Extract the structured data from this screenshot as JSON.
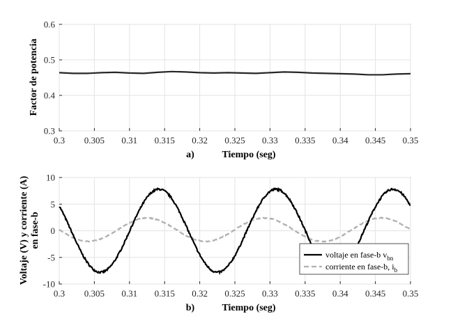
{
  "chart_data": [
    {
      "type": "line",
      "panel_label": "a)",
      "xlabel": "Tiempo (seg)",
      "ylabel": "Factor de potencia",
      "xlim": [
        0.3,
        0.35
      ],
      "ylim": [
        0.3,
        0.6
      ],
      "xticks": [
        "0.3",
        "0.305",
        "0.31",
        "0.315",
        "0.32",
        "0.325",
        "0.33",
        "0.335",
        "0.34",
        "0.345",
        "0.35"
      ],
      "yticks": [
        "0.3",
        "0.4",
        "0.5",
        "0.6"
      ],
      "grid": true,
      "series": [
        {
          "color": "#262626",
          "x": [
            0.3,
            0.302,
            0.304,
            0.306,
            0.308,
            0.31,
            0.312,
            0.314,
            0.316,
            0.318,
            0.32,
            0.322,
            0.324,
            0.326,
            0.328,
            0.33,
            0.332,
            0.334,
            0.336,
            0.338,
            0.34,
            0.342,
            0.344,
            0.346,
            0.348,
            0.35
          ],
          "y": [
            0.464,
            0.462,
            0.462,
            0.464,
            0.465,
            0.463,
            0.462,
            0.465,
            0.467,
            0.466,
            0.464,
            0.463,
            0.464,
            0.463,
            0.462,
            0.464,
            0.466,
            0.465,
            0.463,
            0.462,
            0.461,
            0.46,
            0.458,
            0.458,
            0.46,
            0.461
          ]
        }
      ]
    },
    {
      "type": "line",
      "panel_label": "b)",
      "xlabel": "Tiempo (seg)",
      "ylabel_line1": "Voltaje (V) y corriente (A)",
      "ylabel_line2": "en fase-b",
      "xlim": [
        0.3,
        0.35
      ],
      "ylim": [
        -10,
        10
      ],
      "xticks": [
        "0.3",
        "0.305",
        "0.31",
        "0.315",
        "0.32",
        "0.325",
        "0.33",
        "0.335",
        "0.34",
        "0.345",
        "0.35"
      ],
      "yticks": [
        "-10",
        "-5",
        "0",
        "5",
        "10"
      ],
      "grid": true,
      "legend_position": "bottom-right",
      "series": [
        {
          "name_main": "voltaje en fase-b v",
          "name_sub": "bn",
          "color": "#000000",
          "style": "solid",
          "amplitude": 7.8,
          "period": 0.01667,
          "peak_time": 0.3142,
          "offset": 0
        },
        {
          "name_main": "corriente en fase-b, i",
          "name_sub": "b",
          "color": "#b0b0b0",
          "style": "dashed",
          "amplitude": 2.2,
          "period": 0.01667,
          "peak_time": 0.3125,
          "offset": 0.2
        }
      ]
    }
  ]
}
